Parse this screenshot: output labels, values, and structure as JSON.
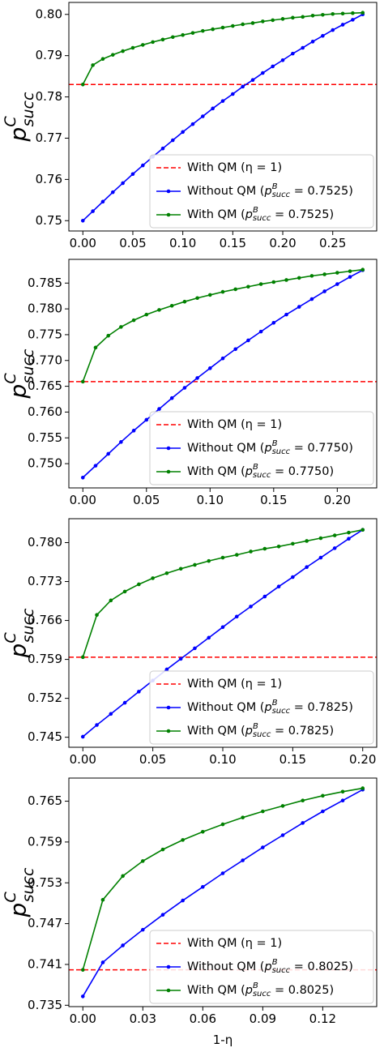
{
  "chart_data": [
    {
      "type": "line",
      "x": [
        0,
        0.01,
        0.02,
        0.03,
        0.04,
        0.05,
        0.06,
        0.07,
        0.08,
        0.09,
        0.1,
        0.11,
        0.12,
        0.13,
        0.14,
        0.15,
        0.16,
        0.17,
        0.18,
        0.19,
        0.2,
        0.21,
        0.22,
        0.23,
        0.24,
        0.25,
        0.26,
        0.27,
        0.28
      ],
      "xlim": [
        -0.014,
        0.294
      ],
      "xticks": [
        {
          "value": 0,
          "label": "0.00"
        },
        0.05,
        {
          "value": 0.1,
          "label": "0.10"
        },
        0.15,
        {
          "value": 0.2,
          "label": "0.20"
        },
        0.25
      ],
      "ylim": [
        0.7475,
        0.8029
      ],
      "yticks": [
        0.75,
        0.76,
        0.77,
        0.78,
        0.79,
        {
          "value": 0.8,
          "label": "0.80"
        }
      ],
      "ylabel": {
        "base": "p",
        "sup": "C",
        "sub": "succ"
      },
      "hline": {
        "name": "With QM (η = 1)",
        "value": 0.783,
        "color": "#ff0000"
      },
      "legend": "lower right",
      "series": [
        {
          "name": [
            "Without QM (",
            "p",
            "B",
            "succ",
            " = 0.7525)"
          ],
          "color": "#0000ff",
          "values": [
            0.75,
            0.7523,
            0.7546,
            0.7569,
            0.7591,
            0.7613,
            0.7634,
            0.7655,
            0.7675,
            0.7695,
            0.7715,
            0.7734,
            0.7753,
            0.7772,
            0.779,
            0.7807,
            0.7825,
            0.7841,
            0.7858,
            0.7874,
            0.7889,
            0.7905,
            0.7919,
            0.7934,
            0.7948,
            0.7962,
            0.7975,
            0.7987,
            0.8
          ]
        },
        {
          "name": [
            "With QM (",
            "p",
            "B",
            "succ",
            " = 0.7525)"
          ],
          "color": "#008000",
          "values": [
            0.783,
            0.7877,
            0.7892,
            0.7902,
            0.7911,
            0.7919,
            0.7926,
            0.7933,
            0.7939,
            0.7945,
            0.795,
            0.7955,
            0.796,
            0.7964,
            0.7968,
            0.7972,
            0.7976,
            0.7979,
            0.7983,
            0.7986,
            0.7989,
            0.7992,
            0.7994,
            0.7997,
            0.7999,
            0.8001,
            0.8002,
            0.8003,
            0.8004
          ]
        }
      ]
    },
    {
      "type": "line",
      "x": [
        0,
        0.01,
        0.02,
        0.03,
        0.04,
        0.05,
        0.06,
        0.07,
        0.08,
        0.09,
        0.1,
        0.11,
        0.12,
        0.13,
        0.14,
        0.15,
        0.16,
        0.17,
        0.18,
        0.19,
        0.2,
        0.21,
        0.22
      ],
      "xlim": [
        -0.011,
        0.231
      ],
      "xticks": [
        {
          "value": 0,
          "label": "0.00"
        },
        0.05,
        {
          "value": 0.1,
          "label": "0.10"
        },
        0.15,
        {
          "value": 0.2,
          "label": "0.20"
        }
      ],
      "ylim": [
        0.7453,
        0.7896
      ],
      "yticks": [
        {
          "value": 0.75,
          "label": "0.750"
        },
        0.755,
        {
          "value": 0.76,
          "label": "0.760"
        },
        0.765,
        {
          "value": 0.77,
          "label": "0.770"
        },
        0.775,
        {
          "value": 0.78,
          "label": "0.780"
        },
        0.785
      ],
      "ylabel": {
        "base": "p",
        "sup": "C",
        "sub": "succ"
      },
      "hline": {
        "name": "With QM (η = 1)",
        "value": 0.7659,
        "color": "#ff0000"
      },
      "legend": "lower right",
      "series": [
        {
          "name": [
            "Without QM (",
            "p",
            "B",
            "succ",
            " = 0.7750)"
          ],
          "color": "#0000ff",
          "values": [
            0.7473,
            0.7496,
            0.7519,
            0.7542,
            0.7564,
            0.7585,
            0.7606,
            0.7627,
            0.7647,
            0.7666,
            0.7685,
            0.7704,
            0.7722,
            0.7739,
            0.7756,
            0.7773,
            0.7789,
            0.7804,
            0.7819,
            0.7834,
            0.7848,
            0.7862,
            0.7875
          ]
        },
        {
          "name": [
            "With QM (",
            "p",
            "B",
            "succ",
            " = 0.7750)"
          ],
          "color": "#008000",
          "values": [
            0.7659,
            0.7725,
            0.7748,
            0.7765,
            0.7778,
            0.7789,
            0.7798,
            0.7806,
            0.7814,
            0.7821,
            0.7827,
            0.7833,
            0.7838,
            0.7843,
            0.7848,
            0.7852,
            0.7856,
            0.786,
            0.7864,
            0.7867,
            0.787,
            0.7873,
            0.7876
          ]
        }
      ]
    },
    {
      "type": "line",
      "x": [
        0,
        0.01,
        0.02,
        0.03,
        0.04,
        0.05,
        0.06,
        0.07,
        0.08,
        0.09,
        0.1,
        0.11,
        0.12,
        0.13,
        0.14,
        0.15,
        0.16,
        0.17,
        0.18,
        0.19,
        0.2
      ],
      "xlim": [
        -0.01,
        0.21
      ],
      "xticks": [
        {
          "value": 0,
          "label": "0.00"
        },
        0.05,
        {
          "value": 0.1,
          "label": "0.10"
        },
        0.15,
        {
          "value": 0.2,
          "label": "0.20"
        }
      ],
      "ylim": [
        0.7432,
        0.7843
      ],
      "yticks": [
        0.745,
        0.752,
        0.759,
        0.766,
        0.773,
        {
          "value": 0.78,
          "label": "0.780"
        }
      ],
      "ylabel": {
        "base": "p",
        "sup": "C",
        "sub": "succ"
      },
      "hline": {
        "name": "With QM (η = 1)",
        "value": 0.7594,
        "color": "#ff0000"
      },
      "legend": "lower right",
      "series": [
        {
          "name": [
            "Without QM (",
            "p",
            "B",
            "succ",
            " = 0.7825)"
          ],
          "color": "#0000ff",
          "values": [
            0.7451,
            0.7472,
            0.7492,
            0.7512,
            0.7532,
            0.7552,
            0.7572,
            0.7591,
            0.761,
            0.7629,
            0.7648,
            0.7667,
            0.7685,
            0.7703,
            0.7721,
            0.7738,
            0.7756,
            0.7773,
            0.779,
            0.7807,
            0.7823
          ]
        },
        {
          "name": [
            "With QM (",
            "p",
            "B",
            "succ",
            " = 0.7825)"
          ],
          "color": "#008000",
          "values": [
            0.7594,
            0.767,
            0.7696,
            0.7712,
            0.7725,
            0.7736,
            0.7745,
            0.7753,
            0.776,
            0.7767,
            0.7773,
            0.7778,
            0.7784,
            0.7789,
            0.7793,
            0.7798,
            0.7803,
            0.7808,
            0.7813,
            0.7818,
            0.7823
          ]
        }
      ]
    },
    {
      "type": "line",
      "x": [
        0,
        0.01,
        0.02,
        0.03,
        0.04,
        0.05,
        0.06,
        0.07,
        0.08,
        0.09,
        0.1,
        0.11,
        0.12,
        0.13,
        0.14
      ],
      "xlim": [
        -0.007,
        0.147
      ],
      "xticks": [
        {
          "value": 0,
          "label": "0.00"
        },
        0.03,
        0.06,
        0.09,
        0.12
      ],
      "ylim": [
        0.7348,
        0.7684
      ],
      "yticks": [
        0.735,
        0.741,
        0.747,
        0.753,
        0.759,
        0.765
      ],
      "ylabel": {
        "base": "p",
        "sup": "C",
        "sub": "succ"
      },
      "xlabel": "1-η",
      "hline": {
        "name": "With QM (η = 1)",
        "value": 0.7402,
        "color": "#ff0000"
      },
      "legend": "lower right",
      "series": [
        {
          "name": [
            "Without QM (",
            "p",
            "B",
            "succ",
            " = 0.8025)"
          ],
          "color": "#0000ff",
          "values": [
            0.7363,
            0.7413,
            0.7438,
            0.7461,
            0.7483,
            0.7504,
            0.7524,
            0.7544,
            0.7563,
            0.7582,
            0.76,
            0.7618,
            0.7635,
            0.7651,
            0.7667
          ]
        },
        {
          "name": [
            "With QM (",
            "p",
            "B",
            "succ",
            " = 0.8025)"
          ],
          "color": "#008000",
          "values": [
            0.7402,
            0.7505,
            0.754,
            0.7562,
            0.7579,
            0.7593,
            0.7605,
            0.7616,
            0.7626,
            0.7635,
            0.7643,
            0.7651,
            0.7658,
            0.7664,
            0.7669
          ]
        }
      ]
    }
  ]
}
